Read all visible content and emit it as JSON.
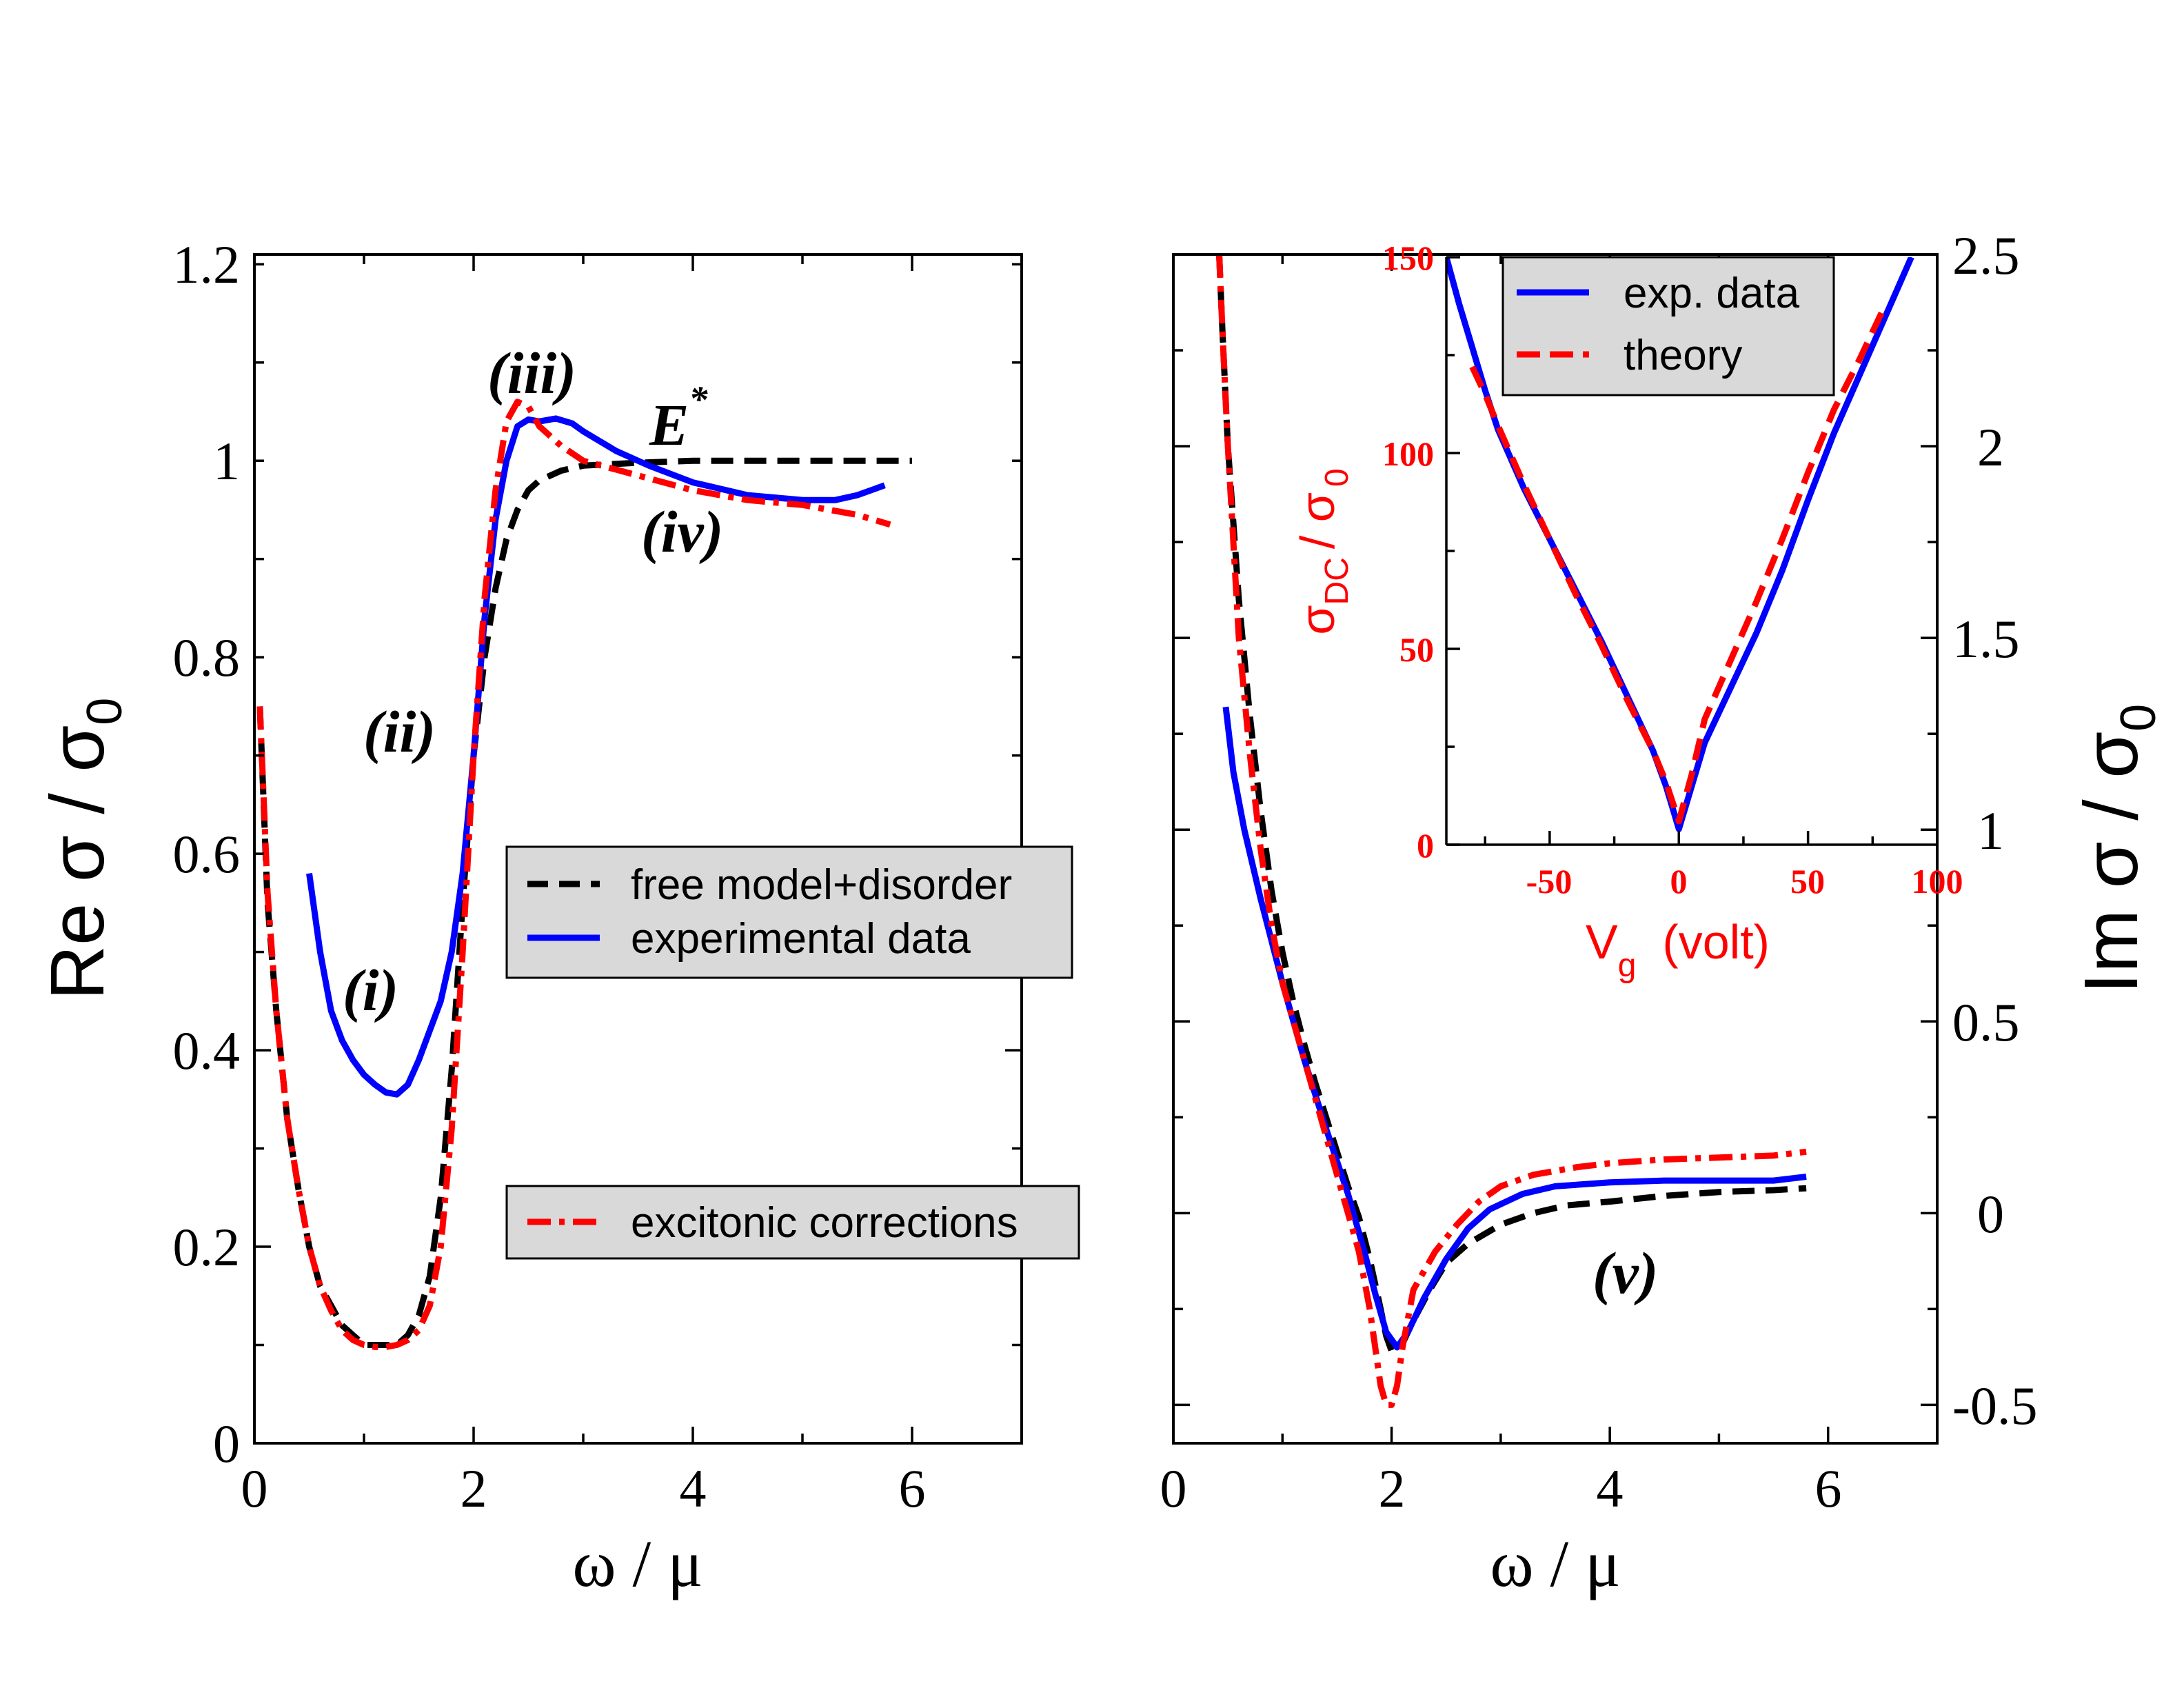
{
  "colors": {
    "black": "#000000",
    "blue": "#0000ff",
    "red": "#ff0000",
    "purple": "#6633cc",
    "legend_bg": "#d9d9d9"
  },
  "chart_data": [
    {
      "id": "left",
      "type": "line",
      "xlabel": "ω / μ",
      "ylabel_main": "Re σ / σ",
      "ylabel_sub": "0",
      "xlim": [
        0,
        7
      ],
      "ylim": [
        0,
        1.21
      ],
      "x_ticks": [
        "0",
        "2",
        "4",
        "6"
      ],
      "y_ticks": [
        "0",
        "0.2",
        "0.4",
        "0.6",
        "0.8",
        "1",
        "1.2"
      ],
      "annotations": {
        "i": "(i)",
        "ii": "(ii)",
        "iii": "(iii)",
        "iv": "(iv)",
        "e_star": "E",
        "e_star_sup": "*"
      },
      "legend": [
        "free model+disorder",
        "experimental data",
        "excitonic corrections"
      ],
      "series": [
        {
          "name": "free model+disorder",
          "style": "dashed",
          "color": "#000000",
          "points": [
            [
              0.05,
              0.75
            ],
            [
              0.12,
              0.55
            ],
            [
              0.2,
              0.44
            ],
            [
              0.3,
              0.33
            ],
            [
              0.4,
              0.26
            ],
            [
              0.5,
              0.2
            ],
            [
              0.6,
              0.16
            ],
            [
              0.7,
              0.14
            ],
            [
              0.8,
              0.12
            ],
            [
              0.9,
              0.11
            ],
            [
              1.0,
              0.1
            ],
            [
              1.1,
              0.1
            ],
            [
              1.2,
              0.1
            ],
            [
              1.3,
              0.1
            ],
            [
              1.4,
              0.11
            ],
            [
              1.5,
              0.13
            ],
            [
              1.6,
              0.17
            ],
            [
              1.7,
              0.25
            ],
            [
              1.8,
              0.38
            ],
            [
              1.9,
              0.55
            ],
            [
              2.0,
              0.7
            ],
            [
              2.1,
              0.8
            ],
            [
              2.2,
              0.87
            ],
            [
              2.3,
              0.92
            ],
            [
              2.4,
              0.95
            ],
            [
              2.5,
              0.97
            ],
            [
              2.6,
              0.98
            ],
            [
              2.8,
              0.99
            ],
            [
              3.0,
              0.995
            ],
            [
              3.5,
              0.998
            ],
            [
              4.0,
              1.0
            ],
            [
              5.0,
              1.0
            ],
            [
              6.0,
              1.0
            ]
          ]
        },
        {
          "name": "experimental data",
          "style": "solid",
          "color": "#0000ff",
          "points": [
            [
              0.5,
              0.58
            ],
            [
              0.6,
              0.5
            ],
            [
              0.7,
              0.44
            ],
            [
              0.8,
              0.41
            ],
            [
              0.9,
              0.39
            ],
            [
              1.0,
              0.375
            ],
            [
              1.1,
              0.365
            ],
            [
              1.2,
              0.357
            ],
            [
              1.3,
              0.355
            ],
            [
              1.4,
              0.365
            ],
            [
              1.5,
              0.39
            ],
            [
              1.6,
              0.42
            ],
            [
              1.7,
              0.45
            ],
            [
              1.8,
              0.5
            ],
            [
              1.9,
              0.58
            ],
            [
              2.0,
              0.7
            ],
            [
              2.1,
              0.84
            ],
            [
              2.2,
              0.94
            ],
            [
              2.3,
              1.0
            ],
            [
              2.4,
              1.035
            ],
            [
              2.5,
              1.042
            ],
            [
              2.6,
              1.04
            ],
            [
              2.75,
              1.043
            ],
            [
              2.9,
              1.038
            ],
            [
              3.0,
              1.03
            ],
            [
              3.3,
              1.01
            ],
            [
              3.6,
              0.995
            ],
            [
              4.0,
              0.978
            ],
            [
              4.5,
              0.965
            ],
            [
              5.0,
              0.96
            ],
            [
              5.3,
              0.96
            ],
            [
              5.5,
              0.965
            ],
            [
              5.75,
              0.975
            ]
          ]
        },
        {
          "name": "excitonic corrections",
          "style": "dashdot",
          "color": "#ff0000",
          "points": [
            [
              0.05,
              0.75
            ],
            [
              0.12,
              0.56
            ],
            [
              0.2,
              0.44
            ],
            [
              0.3,
              0.33
            ],
            [
              0.4,
              0.26
            ],
            [
              0.5,
              0.2
            ],
            [
              0.6,
              0.16
            ],
            [
              0.7,
              0.135
            ],
            [
              0.8,
              0.115
            ],
            [
              0.9,
              0.105
            ],
            [
              1.0,
              0.1
            ],
            [
              1.1,
              0.098
            ],
            [
              1.2,
              0.098
            ],
            [
              1.3,
              0.1
            ],
            [
              1.4,
              0.105
            ],
            [
              1.5,
              0.115
            ],
            [
              1.6,
              0.14
            ],
            [
              1.7,
              0.2
            ],
            [
              1.8,
              0.32
            ],
            [
              1.9,
              0.5
            ],
            [
              2.0,
              0.7
            ],
            [
              2.1,
              0.86
            ],
            [
              2.2,
              0.97
            ],
            [
              2.3,
              1.04
            ],
            [
              2.4,
              1.06
            ],
            [
              2.5,
              1.055
            ],
            [
              2.6,
              1.035
            ],
            [
              2.8,
              1.015
            ],
            [
              3.0,
              1.0
            ],
            [
              3.5,
              0.985
            ],
            [
              4.0,
              0.97
            ],
            [
              4.5,
              0.96
            ],
            [
              5.0,
              0.955
            ],
            [
              5.5,
              0.945
            ],
            [
              5.8,
              0.935
            ]
          ]
        }
      ]
    },
    {
      "id": "right",
      "type": "line",
      "xlabel": "ω / μ",
      "ylabel_main": "Im  σ / σ",
      "ylabel_sub": "0",
      "xlim": [
        0,
        7
      ],
      "ylim": [
        -0.6,
        2.5
      ],
      "x_ticks": [
        "0",
        "2",
        "4",
        "6"
      ],
      "y_ticks": [
        "-0.5",
        "0",
        "0.5",
        "1",
        "1.5",
        "2",
        "2.5"
      ],
      "annotations": {
        "v": "(v)"
      },
      "series": [
        {
          "name": "free model+disorder",
          "style": "dashed",
          "color": "#000000",
          "points": [
            [
              0.42,
              2.5
            ],
            [
              0.45,
              2.3
            ],
            [
              0.5,
              2.0
            ],
            [
              0.6,
              1.6
            ],
            [
              0.7,
              1.3
            ],
            [
              0.8,
              1.05
            ],
            [
              0.9,
              0.84
            ],
            [
              1.0,
              0.68
            ],
            [
              1.1,
              0.55
            ],
            [
              1.2,
              0.44
            ],
            [
              1.3,
              0.34
            ],
            [
              1.4,
              0.25
            ],
            [
              1.5,
              0.16
            ],
            [
              1.6,
              0.07
            ],
            [
              1.7,
              -0.01
            ],
            [
              1.8,
              -0.12
            ],
            [
              1.9,
              -0.25
            ],
            [
              1.95,
              -0.32
            ],
            [
              2.0,
              -0.36
            ],
            [
              2.1,
              -0.34
            ],
            [
              2.2,
              -0.28
            ],
            [
              2.35,
              -0.2
            ],
            [
              2.5,
              -0.13
            ],
            [
              2.7,
              -0.08
            ],
            [
              3.0,
              -0.03
            ],
            [
              3.3,
              0.0
            ],
            [
              3.6,
              0.02
            ],
            [
              4.0,
              0.03
            ],
            [
              4.5,
              0.045
            ],
            [
              5.0,
              0.055
            ],
            [
              5.5,
              0.06
            ],
            [
              5.8,
              0.065
            ]
          ]
        },
        {
          "name": "experimental data",
          "style": "solid",
          "color": "#0000ff",
          "points": [
            [
              0.48,
              1.32
            ],
            [
              0.55,
              1.15
            ],
            [
              0.65,
              1.0
            ],
            [
              0.8,
              0.82
            ],
            [
              1.0,
              0.6
            ],
            [
              1.2,
              0.4
            ],
            [
              1.4,
              0.22
            ],
            [
              1.6,
              0.05
            ],
            [
              1.75,
              -0.1
            ],
            [
              1.85,
              -0.21
            ],
            [
              1.95,
              -0.31
            ],
            [
              2.05,
              -0.35
            ],
            [
              2.15,
              -0.31
            ],
            [
              2.3,
              -0.22
            ],
            [
              2.5,
              -0.12
            ],
            [
              2.7,
              -0.04
            ],
            [
              2.9,
              0.01
            ],
            [
              3.2,
              0.05
            ],
            [
              3.5,
              0.07
            ],
            [
              4.0,
              0.08
            ],
            [
              4.5,
              0.085
            ],
            [
              5.0,
              0.085
            ],
            [
              5.5,
              0.085
            ],
            [
              5.8,
              0.095
            ]
          ]
        },
        {
          "name": "excitonic corrections",
          "style": "dashdot",
          "color": "#ff0000",
          "points": [
            [
              0.42,
              2.5
            ],
            [
              0.45,
              2.3
            ],
            [
              0.5,
              2.0
            ],
            [
              0.6,
              1.5
            ],
            [
              0.7,
              1.2
            ],
            [
              0.8,
              0.95
            ],
            [
              0.9,
              0.75
            ],
            [
              1.0,
              0.6
            ],
            [
              1.1,
              0.5
            ],
            [
              1.2,
              0.4
            ],
            [
              1.3,
              0.3
            ],
            [
              1.4,
              0.2
            ],
            [
              1.5,
              0.1
            ],
            [
              1.6,
              0.0
            ],
            [
              1.7,
              -0.1
            ],
            [
              1.8,
              -0.25
            ],
            [
              1.85,
              -0.35
            ],
            [
              1.9,
              -0.45
            ],
            [
              1.95,
              -0.5
            ],
            [
              2.0,
              -0.5
            ],
            [
              2.05,
              -0.45
            ],
            [
              2.1,
              -0.35
            ],
            [
              2.2,
              -0.2
            ],
            [
              2.4,
              -0.1
            ],
            [
              2.6,
              -0.03
            ],
            [
              2.8,
              0.03
            ],
            [
              3.0,
              0.07
            ],
            [
              3.3,
              0.1
            ],
            [
              3.7,
              0.12
            ],
            [
              4.0,
              0.13
            ],
            [
              4.5,
              0.14
            ],
            [
              5.0,
              0.145
            ],
            [
              5.5,
              0.15
            ],
            [
              5.8,
              0.16
            ]
          ]
        }
      ]
    },
    {
      "id": "inset",
      "type": "line",
      "xlabel_main": "V",
      "xlabel_sub": "g",
      "xlabel_tail": "(volt)",
      "ylabel_main": "σ",
      "ylabel_sub1": "DC",
      "ylabel_mid": "/ σ",
      "ylabel_sub2": "0",
      "xlim": [
        -90,
        100
      ],
      "ylim": [
        0,
        150
      ],
      "x_ticks": [
        "-50",
        "0",
        "50",
        "100"
      ],
      "y_ticks": [
        "0",
        "50",
        "100",
        "150"
      ],
      "legend": [
        "exp. data",
        "theory"
      ],
      "series": [
        {
          "name": "exp. data",
          "style": "solid",
          "color": "#0000ff",
          "points": [
            [
              -90,
              150
            ],
            [
              -85,
              138
            ],
            [
              -80,
              127
            ],
            [
              -75,
              116
            ],
            [
              -70,
              106
            ],
            [
              -60,
              91
            ],
            [
              -50,
              78
            ],
            [
              -40,
              65
            ],
            [
              -30,
              52
            ],
            [
              -20,
              38
            ],
            [
              -10,
              24
            ],
            [
              -5,
              15
            ],
            [
              0,
              4
            ],
            [
              5,
              15
            ],
            [
              10,
              26
            ],
            [
              20,
              40
            ],
            [
              30,
              54
            ],
            [
              40,
              70
            ],
            [
              50,
              88
            ],
            [
              60,
              105
            ],
            [
              70,
              120
            ],
            [
              80,
              135
            ],
            [
              90,
              150
            ]
          ]
        },
        {
          "name": "theory",
          "style": "dashed",
          "color": "#ff0000",
          "points": [
            [
              -80,
              122
            ],
            [
              -75,
              115
            ],
            [
              -70,
              107
            ],
            [
              -60,
              92
            ],
            [
              -50,
              78
            ],
            [
              -40,
              64
            ],
            [
              -30,
              51
            ],
            [
              -20,
              37
            ],
            [
              -10,
              24
            ],
            [
              -5,
              16
            ],
            [
              0,
              6
            ],
            [
              5,
              18
            ],
            [
              10,
              32
            ],
            [
              20,
              47
            ],
            [
              30,
              62
            ],
            [
              40,
              78
            ],
            [
              50,
              95
            ],
            [
              60,
              111
            ],
            [
              70,
              124
            ],
            [
              80,
              138
            ]
          ]
        }
      ]
    }
  ]
}
